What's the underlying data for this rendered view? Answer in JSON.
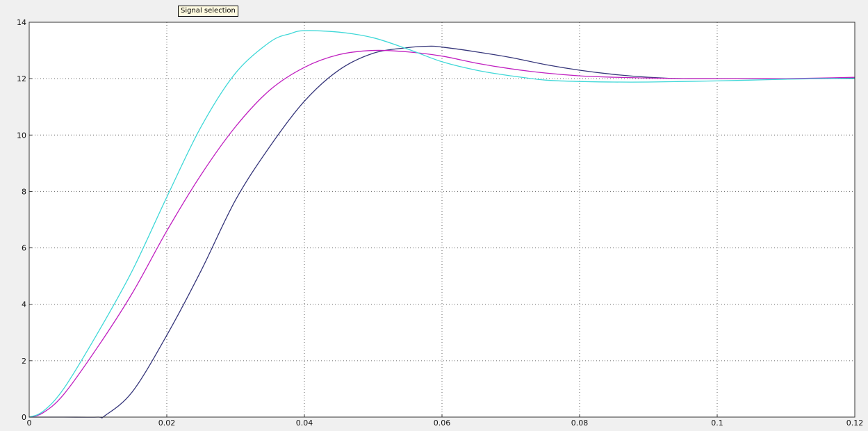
{
  "window": {
    "tooltip": "Signal selection"
  },
  "chart_data": {
    "type": "line",
    "title": "",
    "xlabel": "",
    "ylabel": "",
    "xlim": [
      0,
      0.12
    ],
    "ylim": [
      0,
      14
    ],
    "grid": true,
    "background_color": "#ffffff",
    "x_ticks": [
      0,
      0.02,
      0.04,
      0.06,
      0.08,
      0.1,
      0.12
    ],
    "x_tick_labels": [
      "0",
      "0.02",
      "0.04",
      "0.06",
      "0.08",
      "0.1",
      "0.12"
    ],
    "y_ticks": [
      0,
      2,
      4,
      6,
      8,
      10,
      12,
      14
    ],
    "y_tick_labels": [
      "0",
      "2",
      "4",
      "6",
      "8",
      "10",
      "12",
      "14"
    ],
    "series": [
      {
        "color": "#35357a",
        "x": [
          0,
          0.005,
          0.01,
          0.011,
          0.015,
          0.02,
          0.025,
          0.03,
          0.035,
          0.04,
          0.045,
          0.05,
          0.055,
          0.058,
          0.06,
          0.065,
          0.07,
          0.075,
          0.08,
          0.085,
          0.09,
          0.095,
          0.1,
          0.105,
          0.11,
          0.115,
          0.12
        ],
        "y": [
          0,
          0,
          0,
          0.05,
          0.9,
          2.9,
          5.2,
          7.7,
          9.6,
          11.2,
          12.3,
          12.9,
          13.1,
          13.15,
          13.12,
          12.95,
          12.75,
          12.5,
          12.3,
          12.15,
          12.05,
          12.0,
          12.0,
          12.0,
          12.0,
          12.0,
          12.02
        ]
      },
      {
        "color": "#c020c0",
        "x": [
          0,
          0.002,
          0.005,
          0.01,
          0.015,
          0.02,
          0.025,
          0.03,
          0.035,
          0.04,
          0.045,
          0.05,
          0.055,
          0.06,
          0.065,
          0.07,
          0.075,
          0.08,
          0.085,
          0.09,
          0.095,
          0.1,
          0.105,
          0.11,
          0.115,
          0.12
        ],
        "y": [
          0,
          0.15,
          0.8,
          2.5,
          4.4,
          6.6,
          8.6,
          10.3,
          11.6,
          12.4,
          12.85,
          13.0,
          12.95,
          12.8,
          12.55,
          12.35,
          12.2,
          12.1,
          12.05,
          12.02,
          12.0,
          12.0,
          12.0,
          12.0,
          12.02,
          12.05
        ]
      },
      {
        "color": "#40d8d8",
        "x": [
          0,
          0.002,
          0.005,
          0.01,
          0.015,
          0.02,
          0.025,
          0.03,
          0.035,
          0.038,
          0.04,
          0.045,
          0.05,
          0.055,
          0.06,
          0.065,
          0.07,
          0.075,
          0.08,
          0.085,
          0.09,
          0.095,
          0.1,
          0.105,
          0.11,
          0.115,
          0.12
        ],
        "y": [
          0,
          0.2,
          1.0,
          3.0,
          5.2,
          7.8,
          10.3,
          12.2,
          13.3,
          13.6,
          13.7,
          13.65,
          13.45,
          13.05,
          12.6,
          12.3,
          12.1,
          11.95,
          11.9,
          11.88,
          11.88,
          11.9,
          11.92,
          11.95,
          11.98,
          12.0,
          12.0
        ]
      }
    ]
  }
}
